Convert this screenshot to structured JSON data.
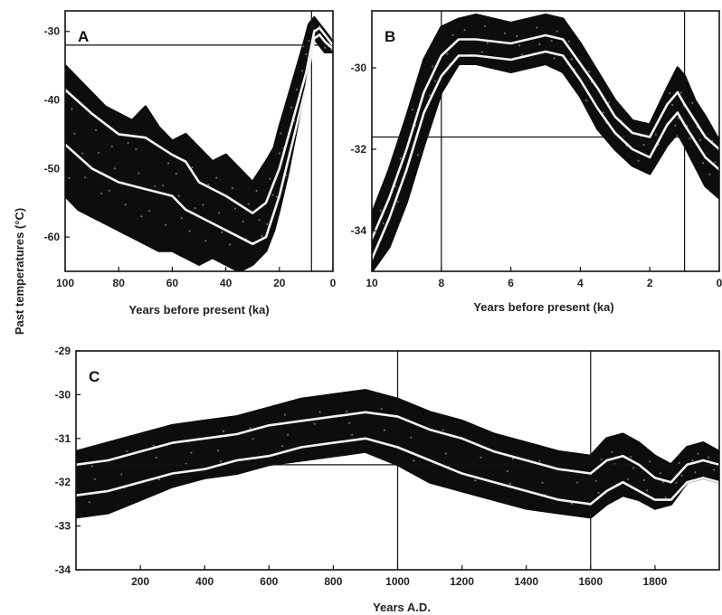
{
  "ylabel": "Past temperatures (°C)",
  "colors": {
    "band": "#0d0d0d",
    "curve": "#f2f2f2",
    "axis": "#111111"
  },
  "chart_data": [
    {
      "id": "A",
      "type": "line",
      "panel_label": "A",
      "xlabel": "Years before present (ka)",
      "xlim": [
        100,
        0
      ],
      "ylim": [
        -65,
        -27
      ],
      "xticks": [
        100,
        80,
        60,
        40,
        20,
        0
      ],
      "xtick_labels": [
        "100",
        "80",
        "60",
        "40",
        "20",
        "0"
      ],
      "yticks": [
        -30,
        -40,
        -50,
        -60
      ],
      "ytick_labels": [
        "-30",
        "-40",
        "-50",
        "-60"
      ],
      "hlines": [
        -32
      ],
      "vlines": [
        8
      ],
      "band": {
        "x": [
          100,
          95,
          90,
          85,
          80,
          75,
          70,
          65,
          60,
          55,
          50,
          45,
          40,
          35,
          30,
          25,
          22,
          20,
          17,
          14,
          11,
          9,
          7,
          5,
          3,
          1,
          0
        ],
        "upper": [
          -35,
          -37,
          -39,
          -41,
          -42,
          -43,
          -41,
          -44,
          -46,
          -45,
          -47,
          -49,
          -48,
          -50,
          -52,
          -49,
          -47,
          -44,
          -40,
          -36,
          -32,
          -29,
          -28,
          -29,
          -30,
          -31,
          -32
        ],
        "lower": [
          -54,
          -56,
          -57,
          -58,
          -59,
          -60,
          -61,
          -62,
          -62,
          -63,
          -64,
          -63,
          -64,
          -65,
          -64,
          -62,
          -59,
          -56,
          -51,
          -45,
          -39,
          -34,
          -31,
          -32,
          -33,
          -33,
          -33
        ]
      },
      "series": [
        {
          "x": [
            100,
            90,
            80,
            70,
            60,
            55,
            50,
            40,
            30,
            25,
            20,
            15,
            10,
            7,
            5,
            3,
            0
          ],
          "values": [
            -38.5,
            -42,
            -45,
            -45.5,
            -48,
            -49,
            -52,
            -54,
            -56.5,
            -55,
            -50,
            -43,
            -36,
            -30,
            -29.5,
            -30.5,
            -32
          ]
        },
        {
          "x": [
            100,
            90,
            80,
            70,
            60,
            55,
            50,
            40,
            30,
            25,
            20,
            15,
            10,
            7,
            5,
            3,
            0
          ],
          "values": [
            -46.5,
            -50,
            -52,
            -53,
            -54,
            -56,
            -57,
            -59,
            -61,
            -60,
            -54,
            -46,
            -38,
            -31,
            -30.5,
            -31.5,
            -32.5
          ]
        }
      ]
    },
    {
      "id": "B",
      "type": "line",
      "panel_label": "B",
      "xlabel": "Years before present (ka)",
      "xlim": [
        10,
        0
      ],
      "ylim": [
        -35,
        -28.6
      ],
      "xticks": [
        10,
        8,
        6,
        4,
        2,
        0
      ],
      "xtick_labels": [
        "10",
        "8",
        "6",
        "4",
        "2",
        "0"
      ],
      "yticks": [
        -30,
        -32,
        -34
      ],
      "ytick_labels": [
        "-30",
        "-32",
        "-34"
      ],
      "hlines": [
        -31.7
      ],
      "vlines": [
        8,
        1
      ],
      "band": {
        "x": [
          10,
          9.5,
          9,
          8.5,
          8,
          7.5,
          7,
          6.5,
          6,
          5.5,
          5,
          4.5,
          4,
          3.5,
          3,
          2.5,
          2,
          1.5,
          1.2,
          1,
          0.7,
          0.4,
          0
        ],
        "upper": [
          -33.6,
          -32.5,
          -31.2,
          -29.8,
          -29.0,
          -28.8,
          -28.7,
          -28.8,
          -28.9,
          -28.8,
          -28.7,
          -28.8,
          -29.4,
          -30.1,
          -30.8,
          -31.3,
          -31.4,
          -30.5,
          -30.0,
          -30.2,
          -30.8,
          -31.2,
          -31.8
        ],
        "lower": [
          -35.0,
          -34.4,
          -33.3,
          -31.9,
          -30.6,
          -29.9,
          -29.9,
          -30.0,
          -30.1,
          -30.0,
          -29.9,
          -30.1,
          -30.7,
          -31.5,
          -32.0,
          -32.4,
          -32.6,
          -31.9,
          -31.6,
          -31.9,
          -32.4,
          -32.9,
          -33.2
        ]
      },
      "series": [
        {
          "x": [
            10,
            9.5,
            9,
            8.5,
            8,
            7.5,
            7,
            6,
            5,
            4.5,
            4,
            3.5,
            3,
            2.5,
            2,
            1.5,
            1.2,
            1,
            0.7,
            0.4,
            0
          ],
          "values": [
            -34.2,
            -33.2,
            -32.0,
            -30.6,
            -29.7,
            -29.3,
            -29.3,
            -29.4,
            -29.2,
            -29.3,
            -29.9,
            -30.5,
            -31.2,
            -31.6,
            -31.7,
            -30.9,
            -30.6,
            -30.9,
            -31.3,
            -31.7,
            -32.0
          ]
        },
        {
          "x": [
            10,
            9.5,
            9,
            8.5,
            8,
            7.5,
            7,
            6,
            5,
            4.5,
            4,
            3.5,
            3,
            2.5,
            2,
            1.5,
            1.2,
            1,
            0.7,
            0.4,
            0
          ],
          "values": [
            -34.7,
            -33.7,
            -32.5,
            -31.1,
            -30.2,
            -29.7,
            -29.7,
            -29.8,
            -29.6,
            -29.7,
            -30.3,
            -31.0,
            -31.6,
            -32.0,
            -32.2,
            -31.4,
            -31.1,
            -31.4,
            -31.8,
            -32.2,
            -32.5
          ]
        }
      ]
    },
    {
      "id": "C",
      "type": "line",
      "panel_label": "C",
      "xlabel": "Years A.D.",
      "xlim": [
        0,
        2000
      ],
      "ylim": [
        -34,
        -29
      ],
      "xticks": [
        200,
        400,
        600,
        800,
        1000,
        1200,
        1400,
        1600,
        1800
      ],
      "xtick_labels": [
        "200",
        "400",
        "600",
        "800",
        "1000",
        "1200",
        "1400",
        "1600",
        "1800"
      ],
      "yticks": [
        -29,
        -30,
        -31,
        -32,
        -33,
        -34
      ],
      "ytick_labels": [
        "-29",
        "-30",
        "-31",
        "-32",
        "-33",
        "-34"
      ],
      "hlines": [
        -31.6
      ],
      "vlines": [
        1000,
        1600
      ],
      "band": {
        "x": [
          0,
          100,
          200,
          300,
          400,
          500,
          600,
          700,
          800,
          900,
          1000,
          1100,
          1200,
          1300,
          1400,
          1500,
          1600,
          1650,
          1700,
          1750,
          1800,
          1850,
          1900,
          1950,
          2000
        ],
        "upper": [
          -31.3,
          -31.1,
          -30.9,
          -30.7,
          -30.6,
          -30.5,
          -30.3,
          -30.1,
          -30.0,
          -29.9,
          -30.1,
          -30.4,
          -30.6,
          -30.9,
          -31.1,
          -31.3,
          -31.4,
          -31.0,
          -30.9,
          -31.1,
          -31.4,
          -31.6,
          -31.2,
          -31.1,
          -31.3
        ],
        "lower": [
          -32.8,
          -32.7,
          -32.4,
          -32.1,
          -31.9,
          -31.8,
          -31.6,
          -31.5,
          -31.4,
          -31.3,
          -31.6,
          -32.0,
          -32.2,
          -32.4,
          -32.6,
          -32.7,
          -32.8,
          -32.5,
          -32.3,
          -32.4,
          -32.6,
          -32.5,
          -32.0,
          -31.9,
          -32.0
        ]
      },
      "series": [
        {
          "x": [
            0,
            100,
            200,
            300,
            400,
            500,
            600,
            700,
            800,
            900,
            1000,
            1100,
            1200,
            1300,
            1400,
            1500,
            1600,
            1650,
            1700,
            1750,
            1800,
            1850,
            1900,
            1950,
            2000
          ],
          "values": [
            -31.6,
            -31.5,
            -31.3,
            -31.1,
            -31.0,
            -30.9,
            -30.7,
            -30.6,
            -30.5,
            -30.4,
            -30.5,
            -30.8,
            -31.0,
            -31.3,
            -31.5,
            -31.7,
            -31.8,
            -31.5,
            -31.4,
            -31.6,
            -31.9,
            -32.0,
            -31.6,
            -31.5,
            -31.6
          ]
        },
        {
          "x": [
            0,
            100,
            200,
            300,
            400,
            500,
            600,
            700,
            800,
            900,
            1000,
            1100,
            1200,
            1300,
            1400,
            1500,
            1600,
            1650,
            1700,
            1750,
            1800,
            1850,
            1900,
            1950,
            2000
          ],
          "values": [
            -32.3,
            -32.2,
            -32.0,
            -31.8,
            -31.7,
            -31.5,
            -31.4,
            -31.2,
            -31.1,
            -31.0,
            -31.2,
            -31.5,
            -31.8,
            -32.0,
            -32.2,
            -32.4,
            -32.5,
            -32.2,
            -32.0,
            -32.2,
            -32.4,
            -32.4,
            -32.0,
            -31.9,
            -32.0
          ]
        }
      ]
    }
  ]
}
